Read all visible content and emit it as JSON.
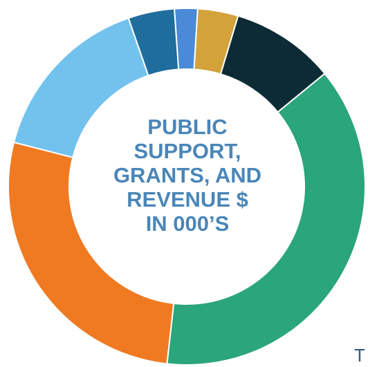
{
  "chart_data": {
    "type": "pie",
    "title_lines": [
      "PUBLIC",
      "SUPPORT,",
      "GRANTS, AND",
      "REVENUE $",
      "IN 000’S"
    ],
    "slices": [
      {
        "value": 2.0,
        "color": "#4a8ad6"
      },
      {
        "value": 3.5,
        "color": "#d3a23b"
      },
      {
        "value": 9.0,
        "color": "#0c2b35"
      },
      {
        "value": 36.0,
        "color": "#2aa57c"
      },
      {
        "value": 26.0,
        "color": "#f07a22"
      },
      {
        "value": 15.0,
        "color": "#72c2ee"
      },
      {
        "value": 4.0,
        "color": "#1f6d9c"
      }
    ],
    "start_angle_deg": -4,
    "donut": true
  },
  "edge_text": "T"
}
